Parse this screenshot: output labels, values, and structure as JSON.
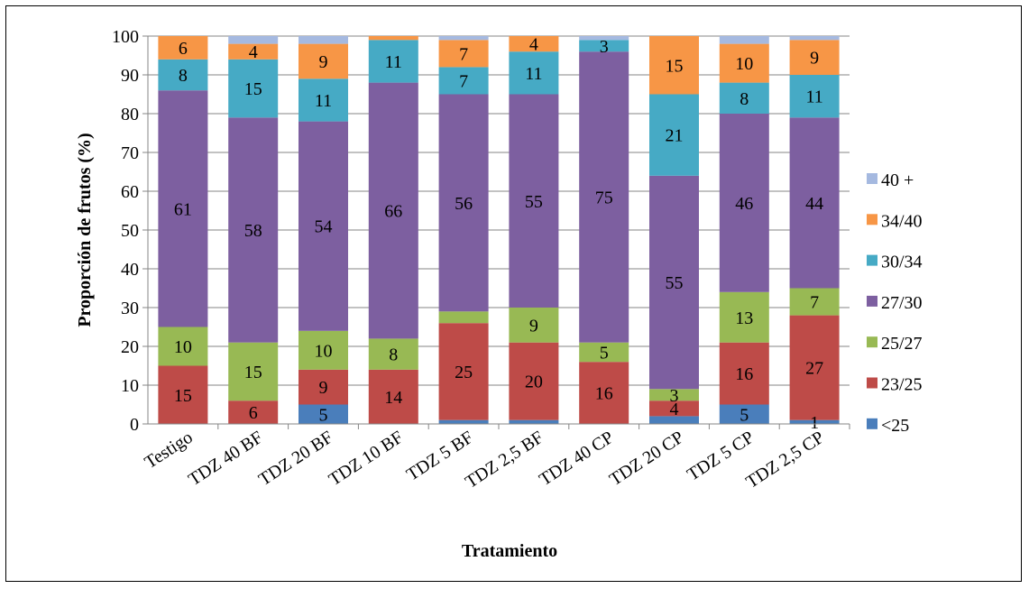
{
  "chart_data": {
    "type": "bar",
    "stacked": true,
    "xlabel": "Tratamiento",
    "ylabel": "Proporción de frutos (%)",
    "ylim": [
      0,
      100
    ],
    "ytick_step": 10,
    "grid": true,
    "legend_position": "right",
    "categories": [
      "Testigo",
      "TDZ 40 BF",
      "TDZ 20 BF",
      "TDZ 10 BF",
      "TDZ 5 BF",
      "TDZ 2,5 BF",
      "TDZ 40 CP",
      "TDZ 20 CP",
      "TDZ 5 CP",
      "TDZ 2,5 CP"
    ],
    "series": [
      {
        "name": "<25",
        "color": "#4A7EBB",
        "values": [
          0,
          0,
          5,
          0,
          1,
          1,
          0,
          2,
          5,
          1
        ],
        "labels": [
          "",
          "",
          "5",
          "",
          "",
          "",
          "",
          "",
          "5",
          "1"
        ]
      },
      {
        "name": "23/25",
        "color": "#BE4B48",
        "values": [
          15,
          6,
          9,
          14,
          25,
          20,
          16,
          4,
          16,
          27
        ],
        "labels": [
          "15",
          "6",
          "9",
          "14",
          "25",
          "20",
          "16",
          "4",
          "16",
          "27"
        ]
      },
      {
        "name": "25/27",
        "color": "#98B954",
        "values": [
          10,
          15,
          10,
          8,
          3,
          9,
          5,
          3,
          13,
          7
        ],
        "labels": [
          "10",
          "15",
          "10",
          "8",
          "",
          "9",
          "5",
          "3",
          "13",
          "7"
        ]
      },
      {
        "name": "27/30",
        "color": "#7D5FA0",
        "values": [
          61,
          58,
          54,
          66,
          56,
          55,
          75,
          55,
          46,
          44
        ],
        "labels": [
          "61",
          "58",
          "54",
          "66",
          "56",
          "55",
          "75",
          "55",
          "46",
          "44"
        ]
      },
      {
        "name": "30/34",
        "color": "#46AAC5",
        "values": [
          8,
          15,
          11,
          11,
          7,
          11,
          3,
          21,
          8,
          11
        ],
        "labels": [
          "8",
          "15",
          "11",
          "11",
          "7",
          "11",
          "3",
          "21",
          "8",
          "11"
        ]
      },
      {
        "name": "34/40",
        "color": "#F79646",
        "values": [
          6,
          4,
          9,
          1,
          7,
          4,
          0,
          15,
          10,
          9
        ],
        "labels": [
          "6",
          "4",
          "9",
          "",
          "7",
          "4",
          "",
          "15",
          "10",
          "9"
        ]
      },
      {
        "name": "40 +",
        "color": "#A5B9E0",
        "values": [
          0,
          2,
          2,
          0,
          1,
          0,
          1,
          0,
          2,
          1
        ],
        "labels": [
          "",
          "",
          "",
          "",
          "",
          "",
          "",
          "",
          "",
          ""
        ]
      }
    ]
  }
}
